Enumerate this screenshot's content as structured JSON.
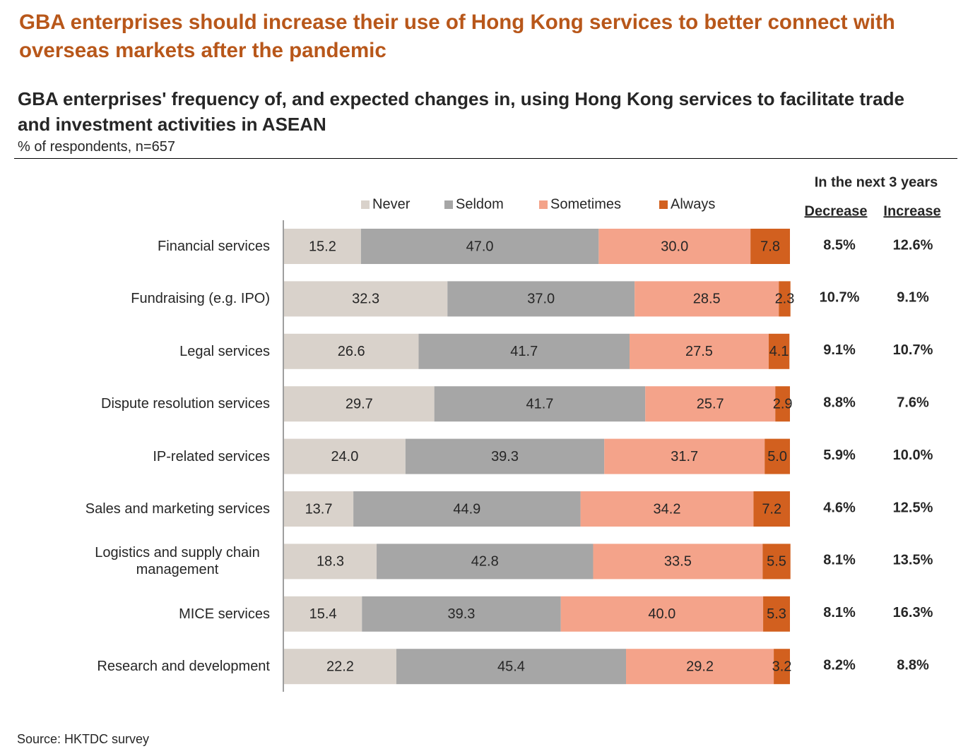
{
  "chart_data": {
    "type": "bar",
    "orientation": "horizontal",
    "stacked": true,
    "title": "GBA enterprises should increase their use of Hong Kong services to better connect with overseas markets after the pandemic",
    "subtitle": "GBA enterprises' frequency of, and expected changes in, using Hong Kong services to facilitate trade and investment activities in ASEAN",
    "unit_note": "% of respondents, n=657",
    "source": "Source: HKTDC survey",
    "legend": "top",
    "xlim": [
      0,
      100
    ],
    "categories": [
      "Financial services",
      "Fundraising (e.g. IPO)",
      "Legal services",
      "Dispute resolution services",
      "IP-related services",
      "Sales and marketing services",
      "Logistics and supply chain management",
      "MICE services",
      "Research and development"
    ],
    "series": [
      {
        "name": "Never",
        "color": "#d9d2cb",
        "values": [
          15.2,
          32.3,
          26.6,
          29.7,
          24,
          13.7,
          18.3,
          15.4,
          22.2
        ],
        "value_labels": [
          "15.2",
          "32.3",
          "26.6",
          "29.7",
          "24.0",
          "13.7",
          "18.3",
          "15.4",
          "22.2"
        ]
      },
      {
        "name": "Seldom",
        "color": "#a6a6a6",
        "values": [
          47,
          37,
          41.7,
          41.7,
          39.3,
          44.9,
          42.8,
          39.3,
          45.4
        ],
        "value_labels": [
          "47.0",
          "37.0",
          "41.7",
          "41.7",
          "39.3",
          "44.9",
          "42.8",
          "39.3",
          "45.4"
        ]
      },
      {
        "name": "Sometimes",
        "color": "#f4a38a",
        "values": [
          30,
          28.5,
          27.5,
          25.7,
          31.7,
          34.2,
          33.5,
          40,
          29.2
        ],
        "value_labels": [
          "30.0",
          "28.5",
          "27.5",
          "25.7",
          "31.7",
          "34.2",
          "33.5",
          "40.0",
          "29.2"
        ]
      },
      {
        "name": "Always",
        "color": "#d2601f",
        "values": [
          7.8,
          2.3,
          4.1,
          2.9,
          5,
          7.2,
          5.5,
          5.3,
          3.2
        ],
        "value_labels": [
          "7.8",
          "2.3",
          "4.1",
          "2.9",
          "5.0",
          "7.2",
          "5.5",
          "5.3",
          "3.2"
        ]
      }
    ]
  },
  "table": {
    "title": "In the next 3 years",
    "columns": [
      "Decrease",
      "Increase"
    ],
    "rows": [
      [
        "8.5%",
        "12.6%"
      ],
      [
        "10.7%",
        "9.1%"
      ],
      [
        "9.1%",
        "10.7%"
      ],
      [
        "8.8%",
        "7.6%"
      ],
      [
        "5.9%",
        "10.0%"
      ],
      [
        "4.6%",
        "12.5%"
      ],
      [
        "8.1%",
        "13.5%"
      ],
      [
        "8.1%",
        "16.3%"
      ],
      [
        "8.2%",
        "8.8%"
      ]
    ]
  }
}
